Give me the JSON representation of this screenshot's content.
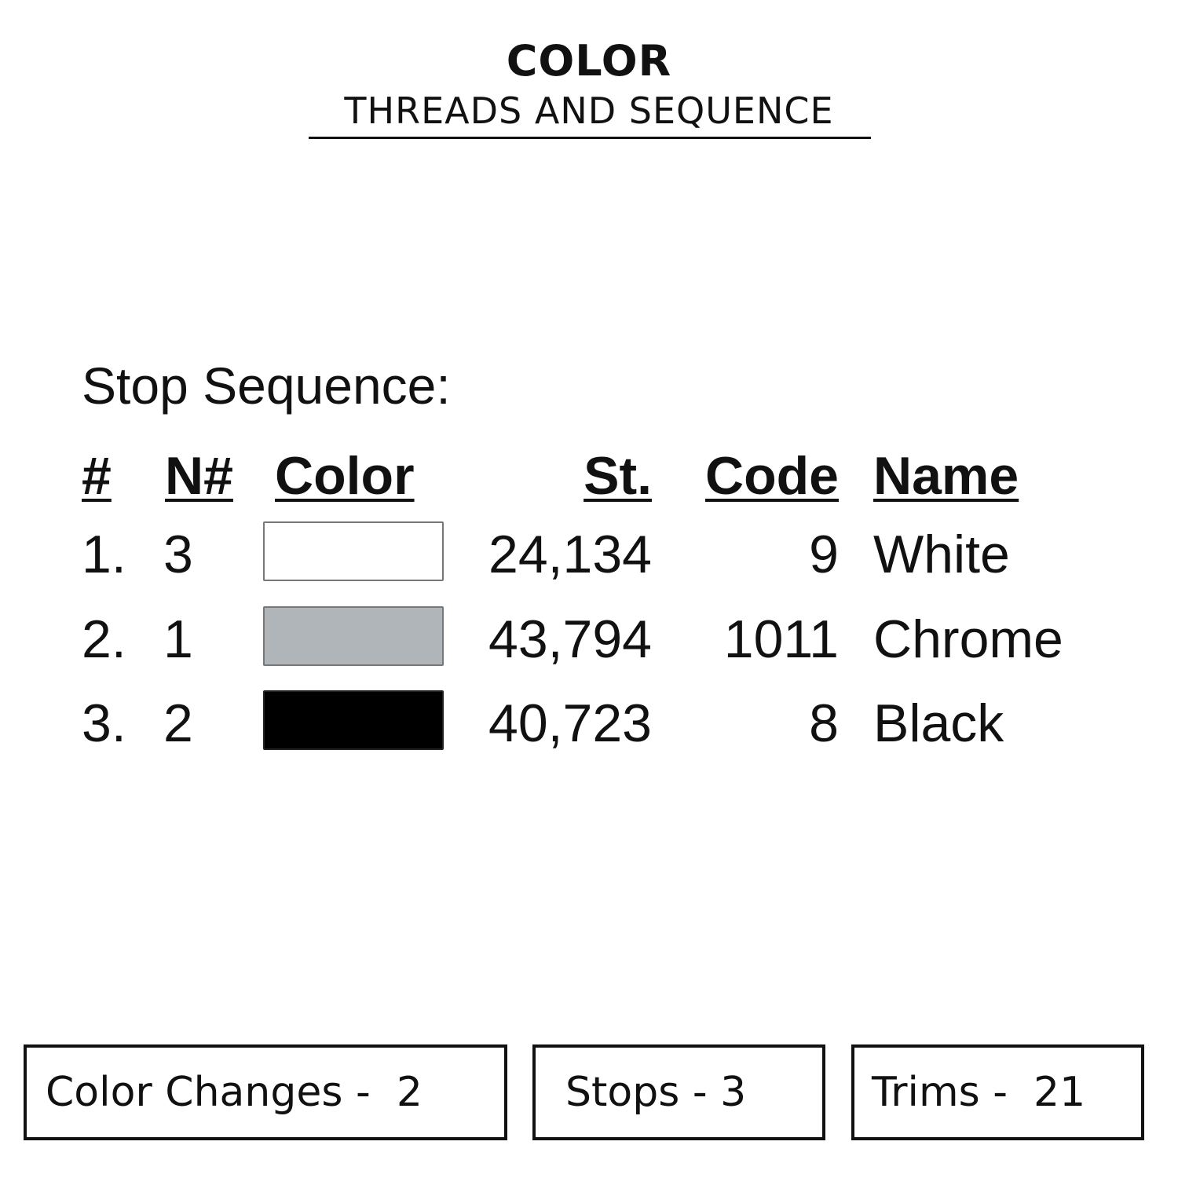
{
  "header": {
    "title": "COLOR",
    "subtitle": "THREADS AND SEQUENCE"
  },
  "stop_sequence": {
    "heading": "Stop Sequence:",
    "columns": [
      "#",
      "N#",
      "Color",
      "St.",
      "Code",
      "Name"
    ],
    "rows": [
      {
        "num": "1.",
        "n": "3",
        "color": "#ffffff",
        "stitches": "24,134",
        "code": "9",
        "name": "White"
      },
      {
        "num": "2.",
        "n": "1",
        "color": "#b0b5ba",
        "stitches": "43,794",
        "code": "1011",
        "name": "Chrome"
      },
      {
        "num": "3.",
        "n": "2",
        "color": "#000000",
        "stitches": "40,723",
        "code": "8",
        "name": "Black"
      }
    ]
  },
  "summary": {
    "color_changes": "Color Changes -  2",
    "stops": "Stops - 3",
    "trims": "Trims -  21"
  }
}
